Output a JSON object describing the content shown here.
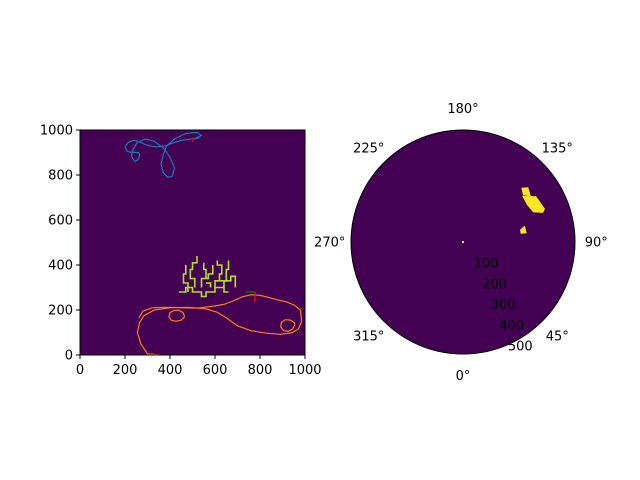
{
  "colors": {
    "background": "#440154",
    "occupied": "#fde725",
    "path_green": "#b5de2b",
    "trajectory_1": "#1f77b4",
    "trajectory_2": "#ff7f0e",
    "pose_red": "#ff0000",
    "pose_green": "#008000",
    "pose_blue": "#0000ff",
    "axis": "#000000"
  },
  "chart_data": [
    {
      "type": "heatmap",
      "xlim": [
        0,
        1000
      ],
      "ylim": [
        0,
        1000
      ],
      "x_ticks": [
        "0",
        "200",
        "400",
        "600",
        "800",
        "1000"
      ],
      "y_ticks": [
        "0",
        "200",
        "400",
        "600",
        "800",
        "1000"
      ],
      "grid": false,
      "series": [
        {
          "color_key": "trajectory_1",
          "points": [
            [
              505,
              960
            ],
            [
              540,
              975
            ],
            [
              520,
              990
            ],
            [
              470,
              985
            ],
            [
              420,
              960
            ],
            [
              385,
              930
            ],
            [
              370,
              890
            ],
            [
              360,
              850
            ],
            [
              370,
              810
            ],
            [
              390,
              790
            ],
            [
              410,
              795
            ],
            [
              420,
              830
            ],
            [
              400,
              880
            ],
            [
              370,
              920
            ],
            [
              330,
              950
            ],
            [
              290,
              960
            ],
            [
              255,
              945
            ],
            [
              240,
              920
            ],
            [
              230,
              900
            ],
            [
              230,
              880
            ],
            [
              245,
              860
            ],
            [
              260,
              870
            ],
            [
              265,
              890
            ],
            [
              260,
              900
            ],
            [
              230,
              900
            ],
            [
              210,
              905
            ],
            [
              200,
              925
            ],
            [
              215,
              945
            ],
            [
              240,
              955
            ],
            [
              270,
              945
            ],
            [
              305,
              930
            ],
            [
              340,
              925
            ],
            [
              380,
              930
            ],
            [
              420,
              945
            ],
            [
              455,
              955
            ],
            [
              495,
              960
            ],
            [
              530,
              965
            ]
          ]
        },
        {
          "color_key": "trajectory_2",
          "points": [
            [
              360,
              0
            ],
            [
              300,
              5
            ],
            [
              270,
              50
            ],
            [
              255,
              100
            ],
            [
              265,
              145
            ],
            [
              285,
              175
            ],
            [
              330,
              200
            ],
            [
              400,
              210
            ],
            [
              480,
              212
            ],
            [
              560,
              205
            ],
            [
              610,
              190
            ],
            [
              650,
              165
            ],
            [
              700,
              130
            ],
            [
              760,
              108
            ],
            [
              830,
              97
            ],
            [
              890,
              92
            ],
            [
              940,
              98
            ],
            [
              970,
              115
            ],
            [
              985,
              150
            ],
            [
              980,
              200
            ],
            [
              955,
              220
            ],
            [
              920,
              235
            ],
            [
              880,
              245
            ],
            [
              840,
              255
            ],
            [
              800,
              265
            ],
            [
              760,
              268
            ],
            [
              720,
              258
            ],
            [
              680,
              240
            ],
            [
              640,
              225
            ],
            [
              580,
              215
            ],
            [
              520,
              208
            ],
            [
              450,
              210
            ],
            [
              380,
              212
            ],
            [
              320,
              210
            ],
            [
              280,
              195
            ],
            [
              262,
              165
            ]
          ]
        },
        {
          "color_key": "trajectory_2",
          "points": [
            [
              465,
              170
            ],
            [
              450,
              155
            ],
            [
              425,
              150
            ],
            [
              405,
              155
            ],
            [
              395,
              170
            ],
            [
              400,
              188
            ],
            [
              418,
              198
            ],
            [
              440,
              198
            ],
            [
              458,
              188
            ],
            [
              465,
              170
            ]
          ]
        },
        {
          "color_key": "trajectory_2",
          "points": [
            [
              955,
              135
            ],
            [
              945,
              115
            ],
            [
              925,
              105
            ],
            [
              905,
              108
            ],
            [
              892,
              125
            ],
            [
              895,
              145
            ],
            [
              912,
              157
            ],
            [
              935,
              155
            ],
            [
              952,
              145
            ],
            [
              955,
              135
            ]
          ]
        }
      ],
      "path_segments": [
        [
          [
            440,
            280
          ],
          [
            470,
            280
          ],
          [
            470,
            300
          ],
          [
            500,
            300
          ],
          [
            500,
            280
          ],
          [
            540,
            280
          ],
          [
            540,
            260
          ],
          [
            560,
            260
          ],
          [
            560,
            280
          ],
          [
            600,
            280
          ],
          [
            600,
            300
          ],
          [
            640,
            300
          ],
          [
            640,
            280
          ],
          [
            660,
            280
          ]
        ],
        [
          [
            510,
            300
          ],
          [
            510,
            340
          ],
          [
            490,
            340
          ],
          [
            490,
            380
          ],
          [
            500,
            380
          ],
          [
            500,
            410
          ],
          [
            520,
            410
          ],
          [
            520,
            440
          ]
        ],
        [
          [
            480,
            280
          ],
          [
            480,
            320
          ],
          [
            460,
            320
          ],
          [
            460,
            360
          ],
          [
            470,
            360
          ],
          [
            470,
            400
          ]
        ],
        [
          [
            540,
            300
          ],
          [
            540,
            340
          ],
          [
            570,
            340
          ],
          [
            570,
            360
          ],
          [
            590,
            360
          ],
          [
            590,
            400
          ]
        ],
        [
          [
            600,
            300
          ],
          [
            600,
            330
          ],
          [
            620,
            330
          ],
          [
            620,
            360
          ],
          [
            630,
            360
          ],
          [
            630,
            400
          ],
          [
            610,
            400
          ],
          [
            610,
            420
          ]
        ],
        [
          [
            640,
            300
          ],
          [
            640,
            330
          ],
          [
            670,
            330
          ],
          [
            670,
            350
          ],
          [
            690,
            350
          ],
          [
            690,
            300
          ]
        ],
        [
          [
            560,
            340
          ],
          [
            560,
            380
          ],
          [
            550,
            380
          ],
          [
            550,
            410
          ]
        ],
        [
          [
            620,
            330
          ],
          [
            650,
            330
          ],
          [
            650,
            380
          ],
          [
            660,
            380
          ],
          [
            660,
            420
          ]
        ],
        [
          [
            580,
            300
          ],
          [
            580,
            320
          ],
          [
            560,
            320
          ]
        ]
      ],
      "pose_markers": [
        {
          "color_key": "pose_red",
          "from": [
            780,
            280
          ],
          "to": [
            775,
            240
          ]
        },
        {
          "color_key": "pose_green",
          "from": [
            780,
            280
          ],
          "to": [
            735,
            280
          ]
        },
        {
          "color_key": "pose_blue",
          "from": [
            780,
            280
          ],
          "to": [
            782,
            283
          ]
        },
        {
          "color_key": "pose_blue",
          "from": [
            500,
            962
          ],
          "to": [
            496,
            945
          ]
        },
        {
          "color_key": "pose_red",
          "from": [
            500,
            962
          ],
          "to": [
            500,
            950
          ]
        }
      ]
    },
    {
      "type": "polar",
      "theta_labels": [
        "0°",
        "45°",
        "90°",
        "135°",
        "180°",
        "225°",
        "270°",
        "315°"
      ],
      "r_labels": [
        "100",
        "200",
        "300",
        "400",
        "500"
      ],
      "rmax": 500,
      "grid": false,
      "occupied_cells_deg_r": [
        [
          [
            120,
            330
          ],
          [
            128,
            335
          ],
          [
            122,
            385
          ],
          [
            112,
            395
          ],
          [
            110,
            380
          ],
          [
            113,
            340
          ]
        ],
        [
          [
            98,
            260
          ],
          [
            102,
            260
          ],
          [
            105,
            285
          ],
          [
            98,
            287
          ]
        ],
        [
          [
            128,
            340
          ],
          [
            133,
            355
          ],
          [
            130,
            380
          ],
          [
            124,
            365
          ]
        ]
      ]
    }
  ]
}
